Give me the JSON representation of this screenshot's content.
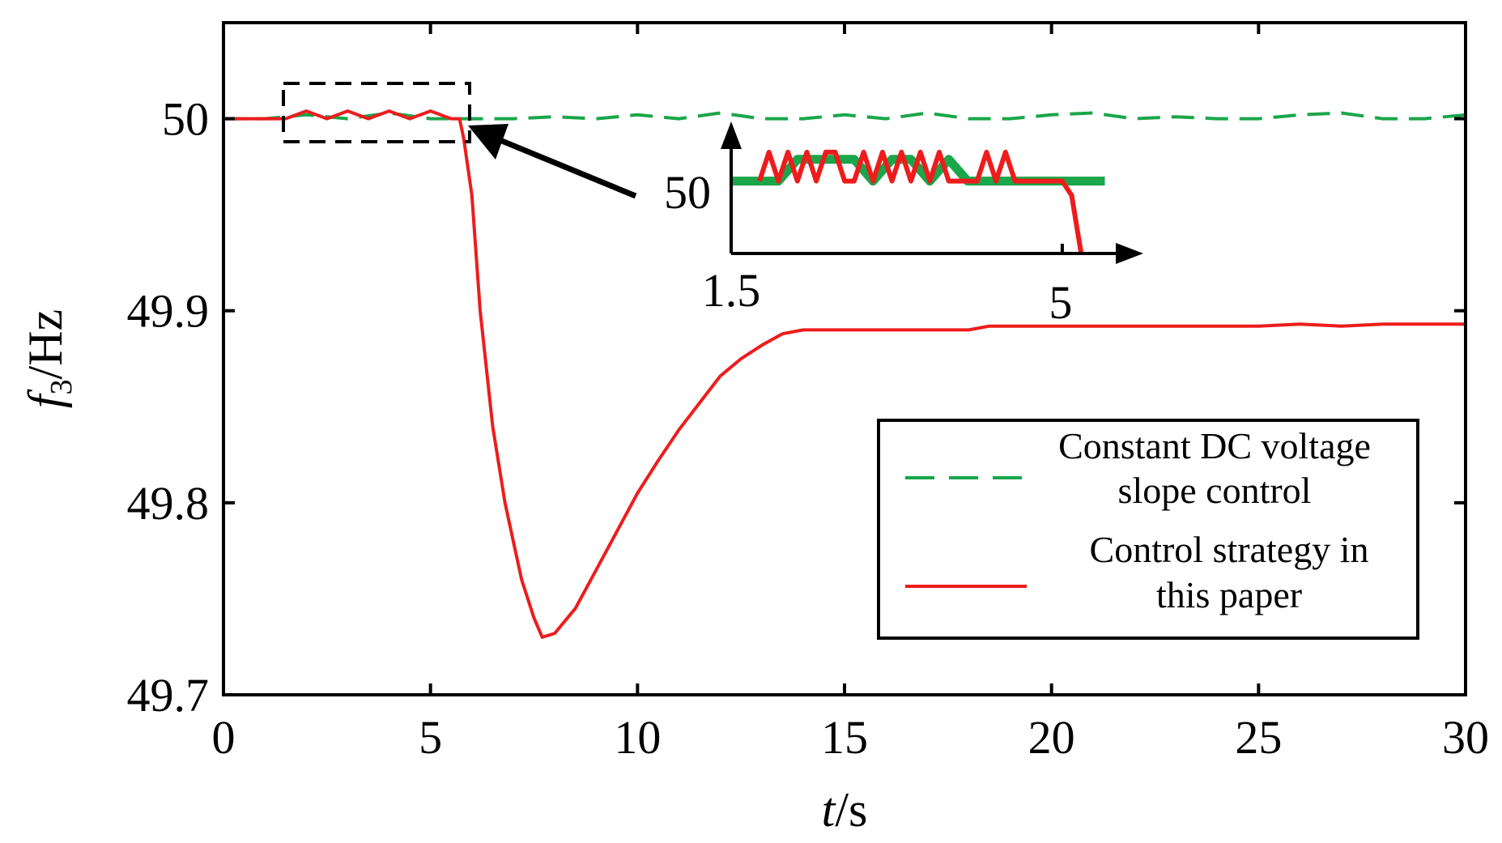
{
  "chart_data": {
    "type": "line",
    "title": "",
    "xlabel": {
      "italic": "t",
      "rest": "/s"
    },
    "ylabel": {
      "italic": "f",
      "sub": "3",
      "rest": "/Hz"
    },
    "xlim": [
      0,
      30
    ],
    "ylim": [
      49.7,
      50.05
    ],
    "xticks": [
      0,
      5,
      10,
      15,
      20,
      25,
      30
    ],
    "xtick_labels": [
      "0",
      "5",
      "10",
      "15",
      "20",
      "25",
      "30"
    ],
    "yticks": [
      49.7,
      49.8,
      49.9,
      50
    ],
    "ytick_labels": [
      "49.7",
      "49.8",
      "49.9",
      "50"
    ],
    "grid": false,
    "legend_position": "lower-right",
    "series": [
      {
        "name": "Constant DC voltage slope control",
        "legend_lines": [
          "Constant DC voltage",
          "slope control"
        ],
        "color": "#1aa64a",
        "style": "dashed",
        "x": [
          0,
          1,
          2,
          3,
          4,
          5,
          6,
          7,
          8,
          9,
          10,
          11,
          12,
          13,
          14,
          15,
          16,
          17,
          18,
          19,
          20,
          21,
          22,
          23,
          24,
          25,
          26,
          27,
          28,
          29,
          30
        ],
        "values": [
          50.0,
          50.0,
          50.002,
          50.0,
          50.003,
          50.0,
          50.0,
          50.0,
          50.001,
          50.0,
          50.002,
          50.0,
          50.003,
          50.0,
          50.0,
          50.002,
          50.0,
          50.003,
          50.0,
          50.0,
          50.002,
          50.003,
          50.0,
          50.001,
          50.0,
          50.0,
          50.002,
          50.003,
          50.0,
          50.0,
          50.002
        ]
      },
      {
        "name": "Control strategy in this paper",
        "legend_lines": [
          "Control strategy in",
          "this paper"
        ],
        "color": "#ee1c1c",
        "style": "solid",
        "x": [
          0,
          0.8,
          1.5,
          2.0,
          2.5,
          3.0,
          3.5,
          4.0,
          4.5,
          5.0,
          5.5,
          5.7,
          5.8,
          6.0,
          6.2,
          6.5,
          6.8,
          7.0,
          7.2,
          7.5,
          7.7,
          8.0,
          8.5,
          9.0,
          9.5,
          10.0,
          10.5,
          11.0,
          11.5,
          12.0,
          12.5,
          13.0,
          13.5,
          14.0,
          15.0,
          16.0,
          17.0,
          18.0,
          18.5,
          19.0,
          20.0,
          21.0,
          22.0,
          23.0,
          24.0,
          25.0,
          26.0,
          27.0,
          28.0,
          29.0,
          30.0
        ],
        "values": [
          50.0,
          50.0,
          50.0,
          50.004,
          50.0,
          50.004,
          50.0,
          50.004,
          50.0,
          50.004,
          50.0,
          50.0,
          49.99,
          49.96,
          49.9,
          49.84,
          49.8,
          49.78,
          49.76,
          49.74,
          49.73,
          49.732,
          49.745,
          49.765,
          49.785,
          49.805,
          49.822,
          49.838,
          49.852,
          49.866,
          49.875,
          49.882,
          49.888,
          49.89,
          49.89,
          49.89,
          49.89,
          49.89,
          49.892,
          49.892,
          49.892,
          49.892,
          49.892,
          49.892,
          49.892,
          49.892,
          49.893,
          49.892,
          49.893,
          49.893,
          49.893
        ]
      }
    ],
    "inset": {
      "xtick_labels": [
        "1.5",
        "5"
      ],
      "ytick_labels": [
        "50"
      ],
      "xlim": [
        1.5,
        5.6
      ],
      "ylim": [
        49.99,
        50.006
      ],
      "series": [
        {
          "name": "Constant DC voltage slope control",
          "color": "#1aa64a",
          "x": [
            1.5,
            1.8,
            2.0,
            2.2,
            2.5,
            2.8,
            3.0,
            3.2,
            3.4,
            3.6,
            3.8,
            4.0,
            4.5,
            5.0,
            5.45
          ],
          "values": [
            50.0,
            50.0,
            50.0,
            50.003,
            50.003,
            50.003,
            50.0,
            50.003,
            50.003,
            50.0,
            50.003,
            50.0,
            50.0,
            50.0,
            50.0
          ]
        },
        {
          "name": "Control strategy in this paper",
          "color": "#ee1c1c",
          "x": [
            1.8,
            1.9,
            2.0,
            2.1,
            2.2,
            2.3,
            2.4,
            2.5,
            2.6,
            2.7,
            2.8,
            2.9,
            3.0,
            3.1,
            3.2,
            3.3,
            3.4,
            3.5,
            3.6,
            3.7,
            3.8,
            3.9,
            4.0,
            4.1,
            4.2,
            4.3,
            4.4,
            4.5,
            4.6,
            5.0,
            5.1,
            5.15,
            5.2
          ],
          "values": [
            50.0,
            50.004,
            50.0,
            50.004,
            50.0,
            50.004,
            50.0,
            50.004,
            50.004,
            50.0,
            50.0,
            50.004,
            50.0,
            50.004,
            50.0,
            50.004,
            50.0,
            50.004,
            50.0,
            50.004,
            50.0,
            50.0,
            50.0,
            50.0,
            50.004,
            50.0,
            50.004,
            50.0,
            50.0,
            50.0,
            49.998,
            49.994,
            49.99
          ]
        }
      ]
    },
    "annotation": "zoom box around t = 1.5–6 s near 50 Hz, arrow pointing to inset"
  }
}
